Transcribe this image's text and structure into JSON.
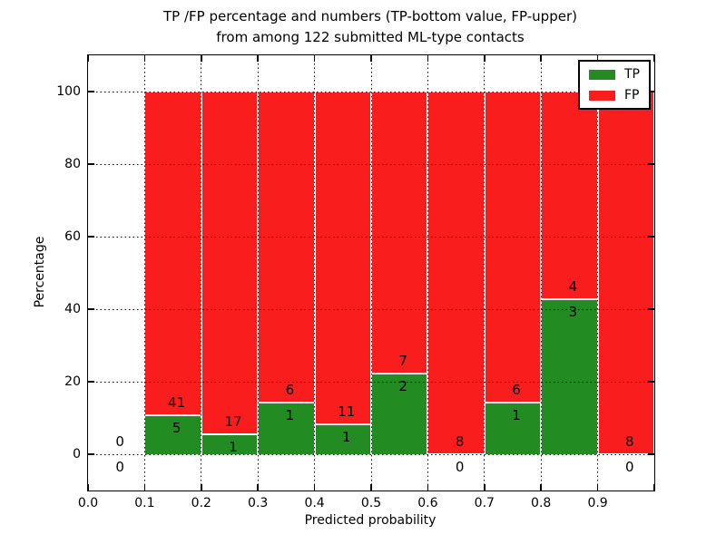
{
  "figure_title": {
    "line1": "TP /FP percentage and numbers (TP-bottom value, FP-upper)",
    "line2": "from among 122 submitted ML-type contacts"
  },
  "axes": {
    "xlabel": "Predicted probability",
    "ylabel": "Percentage",
    "x_tick_labels": [
      "0.0",
      "0.1",
      "0.2",
      "0.3",
      "0.4",
      "0.5",
      "0.6",
      "0.7",
      "0.8",
      "0.9"
    ],
    "y_tick_labels": [
      "0",
      "20",
      "40",
      "60",
      "80",
      "100"
    ]
  },
  "legend": {
    "entries": [
      {
        "label": "TP",
        "color": "#228b22"
      },
      {
        "label": "FP",
        "color": "#f91d1d"
      }
    ]
  },
  "chart_data": {
    "type": "bar",
    "stacked": true,
    "title": "TP /FP percentage and numbers (TP-bottom value, FP-upper) from among 122 submitted ML-type contacts",
    "xlabel": "Predicted probability",
    "ylabel": "Percentage",
    "xlim": [
      0.0,
      1.0
    ],
    "ylim": [
      -10,
      110
    ],
    "grid": true,
    "grid_style": "dotted",
    "legend_position": "upper right",
    "bin_width": 0.1,
    "bin_starts": [
      0.0,
      0.1,
      0.2,
      0.3,
      0.4,
      0.5,
      0.6,
      0.7,
      0.8,
      0.9
    ],
    "categories": [
      "0.0-0.1",
      "0.1-0.2",
      "0.2-0.3",
      "0.3-0.4",
      "0.4-0.5",
      "0.5-0.6",
      "0.6-0.7",
      "0.7-0.8",
      "0.8-0.9",
      "0.9-1.0"
    ],
    "series": [
      {
        "name": "TP",
        "color": "#228b22",
        "counts": [
          0,
          5,
          1,
          1,
          1,
          2,
          0,
          1,
          3,
          0
        ],
        "percent": [
          0,
          10.87,
          5.56,
          14.29,
          8.33,
          22.22,
          0,
          14.29,
          42.86,
          0
        ]
      },
      {
        "name": "FP",
        "color": "#f91d1d",
        "counts": [
          0,
          41,
          17,
          6,
          11,
          7,
          8,
          6,
          4,
          8
        ],
        "percent": [
          0,
          89.13,
          94.44,
          85.71,
          91.67,
          77.78,
          100,
          85.71,
          57.14,
          100
        ]
      }
    ],
    "total_contacts": 122
  }
}
